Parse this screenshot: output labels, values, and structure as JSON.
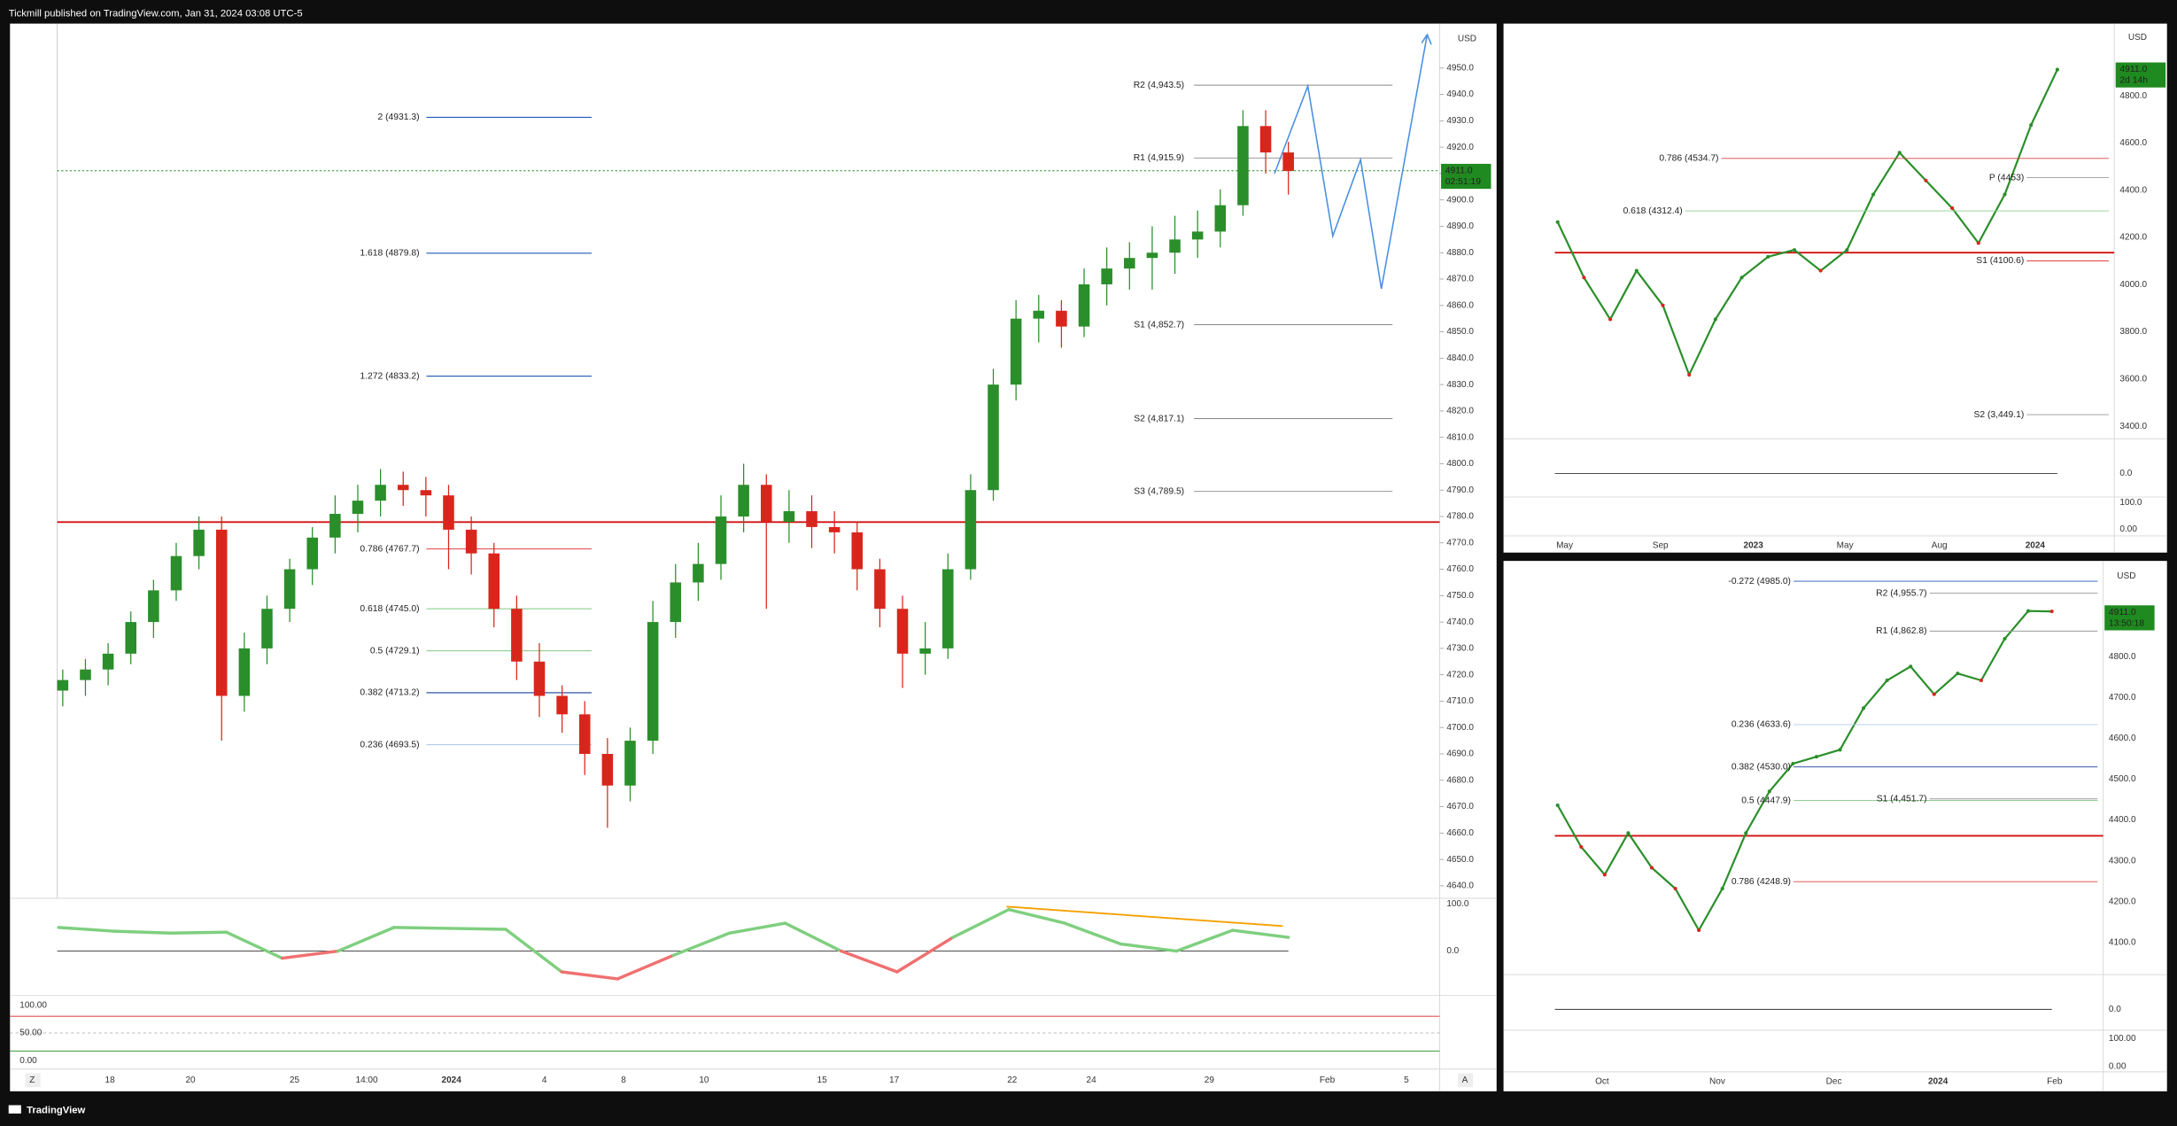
{
  "header": {
    "publisher": "Tickmill published on TradingView.com, Jan 31, 2024 03:08 UTC-5"
  },
  "footer": {
    "brand": "TradingView"
  },
  "main_chart": {
    "currency": "USD",
    "price_ticks": [
      "4950.0",
      "4940.0",
      "4930.0",
      "4920.0",
      "4910.0",
      "4900.0",
      "4890.0",
      "4880.0",
      "4870.0",
      "4860.0",
      "4850.0",
      "4840.0",
      "4830.0",
      "4820.0",
      "4810.0",
      "4800.0",
      "4790.0",
      "4780.0",
      "4770.0",
      "4760.0",
      "4750.0",
      "4740.0",
      "4730.0",
      "4720.0",
      "4710.0",
      "4700.0",
      "4690.0",
      "4680.0",
      "4670.0",
      "4660.0",
      "4650.0",
      "4640.0"
    ],
    "price_badge": {
      "price": "4911.0",
      "countdown": "02:51:19"
    },
    "time_labels": [
      "18",
      "20",
      "25",
      "14:00",
      "2024",
      "4",
      "8",
      "10",
      "15",
      "17",
      "22",
      "24",
      "29",
      "Feb",
      "5"
    ],
    "fib_levels": [
      {
        "label": "2 (4931.3)",
        "color": "#1e5bb8"
      },
      {
        "label": "1.618 (4879.8)",
        "color": "#1e5bb8"
      },
      {
        "label": "1.272 (4833.2)",
        "color": "#1e5bb8"
      },
      {
        "label": "0.786 (4767.7)",
        "color": "#e04040"
      },
      {
        "label": "0.618 (4745.0)",
        "color": "#8fcf8f"
      },
      {
        "label": "0.5 (4729.1)",
        "color": "#8fcf8f"
      },
      {
        "label": "0.382 (4713.2)",
        "color": "#1e3f9a"
      },
      {
        "label": "0.236 (4693.5)",
        "color": "#b0cce8"
      }
    ],
    "pivot_levels": [
      "R2 (4,943.5)",
      "R1 (4,915.9)",
      "S1 (4,852.7)",
      "S2 (4,817.1)",
      "S3 (4,789.5)"
    ],
    "candles": [
      [
        4714,
        4722,
        4708,
        4718
      ],
      [
        4718,
        4726,
        4712,
        4722
      ],
      [
        4722,
        4732,
        4716,
        4728
      ],
      [
        4728,
        4744,
        4724,
        4740
      ],
      [
        4740,
        4756,
        4734,
        4752
      ],
      [
        4752,
        4770,
        4748,
        4765
      ],
      [
        4765,
        4780,
        4760,
        4775
      ],
      [
        4775,
        4780,
        4695,
        4712
      ],
      [
        4712,
        4736,
        4706,
        4730
      ],
      [
        4730,
        4750,
        4724,
        4745
      ],
      [
        4745,
        4764,
        4740,
        4760
      ],
      [
        4760,
        4776,
        4754,
        4772
      ],
      [
        4772,
        4788,
        4766,
        4781
      ],
      [
        4781,
        4792,
        4774,
        4786
      ],
      [
        4786,
        4798,
        4780,
        4792
      ],
      [
        4792,
        4797,
        4784,
        4790
      ],
      [
        4790,
        4795,
        4780,
        4788
      ],
      [
        4788,
        4792,
        4760,
        4775
      ],
      [
        4775,
        4780,
        4758,
        4766
      ],
      [
        4766,
        4770,
        4738,
        4745
      ],
      [
        4745,
        4750,
        4718,
        4725
      ],
      [
        4725,
        4732,
        4704,
        4712
      ],
      [
        4712,
        4716,
        4698,
        4705
      ],
      [
        4705,
        4710,
        4682,
        4690
      ],
      [
        4690,
        4696,
        4662,
        4678
      ],
      [
        4678,
        4700,
        4672,
        4695
      ],
      [
        4695,
        4748,
        4690,
        4740
      ],
      [
        4740,
        4762,
        4734,
        4755
      ],
      [
        4755,
        4770,
        4748,
        4762
      ],
      [
        4762,
        4788,
        4756,
        4780
      ],
      [
        4780,
        4800,
        4774,
        4792
      ],
      [
        4792,
        4796,
        4745,
        4778
      ],
      [
        4778,
        4790,
        4770,
        4782
      ],
      [
        4782,
        4788,
        4768,
        4776
      ],
      [
        4776,
        4782,
        4766,
        4774
      ],
      [
        4774,
        4778,
        4752,
        4760
      ],
      [
        4760,
        4764,
        4738,
        4745
      ],
      [
        4745,
        4750,
        4715,
        4728
      ],
      [
        4728,
        4740,
        4720,
        4730
      ],
      [
        4730,
        4766,
        4726,
        4760
      ],
      [
        4760,
        4796,
        4756,
        4790
      ],
      [
        4790,
        4836,
        4786,
        4830
      ],
      [
        4830,
        4862,
        4824,
        4855
      ],
      [
        4855,
        4864,
        4846,
        4858
      ],
      [
        4858,
        4862,
        4844,
        4852
      ],
      [
        4852,
        4874,
        4848,
        4868
      ],
      [
        4868,
        4882,
        4860,
        4874
      ],
      [
        4874,
        4884,
        4866,
        4878
      ],
      [
        4878,
        4890,
        4866,
        4880
      ],
      [
        4880,
        4894,
        4872,
        4885
      ],
      [
        4885,
        4896,
        4878,
        4888
      ],
      [
        4888,
        4904,
        4882,
        4898
      ],
      [
        4898,
        4934,
        4894,
        4928
      ],
      [
        4928,
        4934,
        4910,
        4918
      ],
      [
        4918,
        4922,
        4902,
        4911
      ]
    ],
    "momentum_scale": [
      "100.0",
      "0.0"
    ],
    "momentum": [
      50,
      42,
      38,
      40,
      -15,
      0,
      50,
      48,
      46,
      -44,
      -59,
      -9,
      38,
      59,
      0,
      -44,
      29,
      88,
      59,
      15,
      0,
      44,
      29
    ],
    "stochastic_scale": [
      "100.00",
      "50.00",
      "0.00"
    ]
  },
  "weekly_chart": {
    "currency": "USD",
    "price_ticks": [
      "4800.0",
      "4600.0",
      "4400.0",
      "4200.0",
      "4000.0",
      "3800.0",
      "3600.0",
      "3400.0"
    ],
    "price_badge": {
      "price": "4911.0",
      "countdown": "2d 14h"
    },
    "time_labels": [
      "May",
      "Sep",
      "2023",
      "May",
      "Aug",
      "2024"
    ],
    "level_labels": [
      {
        "label": "0.786 (4534.7)",
        "color": "#e04040"
      },
      {
        "label": "0.618 (4312.4)",
        "color": "#8fcf8f"
      },
      {
        "label": "P (4453)",
        "color": "#999999"
      },
      {
        "label": "S1 (4100.6)",
        "color": "#e04040"
      },
      {
        "label": "S2 (3,449.1)",
        "color": "#999999"
      }
    ],
    "closes": [
      4265,
      4030,
      3853,
      4059,
      3912,
      3618,
      3853,
      4030,
      4118,
      4147,
      4059,
      4147,
      4382,
      4559,
      4441,
      4324,
      4176,
      4382,
      4676,
      4911
    ],
    "momentum_scale": [
      "0.0"
    ],
    "stochastic_scale": [
      "100.0",
      "0.00"
    ]
  },
  "daily_chart": {
    "currency": "USD",
    "price_ticks": [
      "4800.0",
      "4700.0",
      "4600.0",
      "4500.0",
      "4400.0",
      "4300.0",
      "4200.0",
      "4100.0"
    ],
    "price_badge": {
      "price": "4911.0",
      "countdown": "13:50:18"
    },
    "time_labels": [
      "Oct",
      "Nov",
      "Dec",
      "2024",
      "Feb"
    ],
    "level_labels": [
      {
        "label": "-0.272 (4985.0)",
        "color": "#1e5bb8"
      },
      {
        "label": "R2 (4,955.7)",
        "color": "#999999"
      },
      {
        "label": "R1 (4,862.8)",
        "color": "#999999"
      },
      {
        "label": "0.236 (4633.6)",
        "color": "#b0cce8"
      },
      {
        "label": "0.382 (4530.0)",
        "color": "#1e3f9a"
      },
      {
        "label": "0.5 (4447.9)",
        "color": "#8fcf8f"
      },
      {
        "label": "S1 (4,451.7)",
        "color": "#999999"
      },
      {
        "label": "0.786 (4248.9)",
        "color": "#e04040"
      }
    ],
    "closes": [
      4436,
      4334,
      4266,
      4368,
      4283,
      4232,
      4130,
      4232,
      4368,
      4470,
      4538,
      4555,
      4572,
      4674,
      4742,
      4776,
      4708,
      4759,
      4742,
      4844,
      4912,
      4911
    ],
    "momentum_scale": [
      "0.0"
    ],
    "stochastic_scale": [
      "100.00",
      "0.00"
    ]
  }
}
